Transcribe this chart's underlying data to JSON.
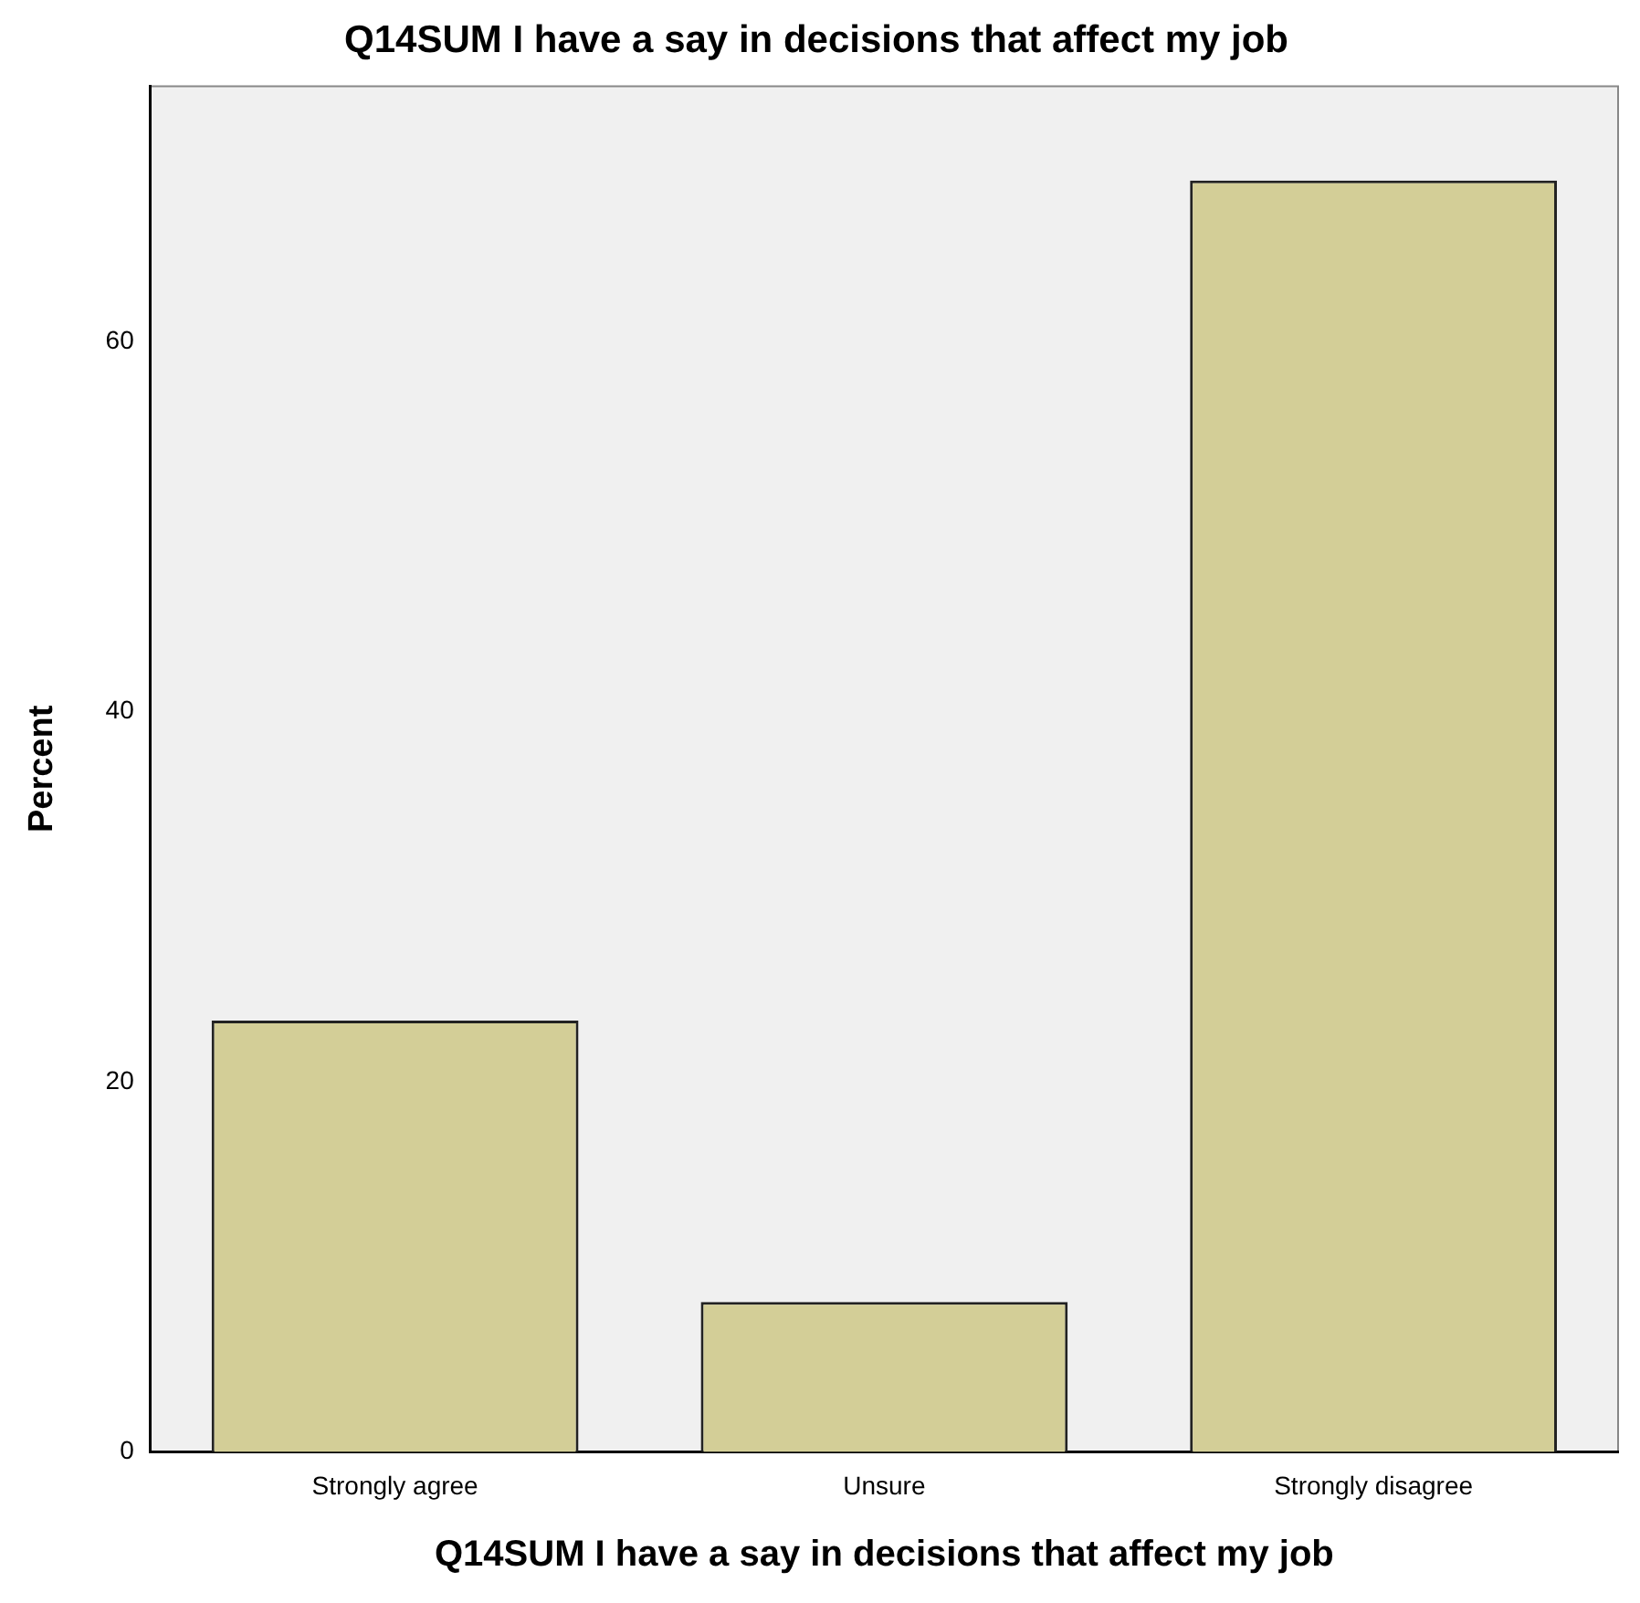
{
  "chart_data": {
    "type": "bar",
    "title": "Q14SUM I have a say in decisions that affect my job",
    "xlabel": "Q14SUM I have a say in decisions that affect my job",
    "ylabel": "Percent",
    "categories": [
      "Strongly agree",
      "Unsure",
      "Strongly disagree"
    ],
    "values": [
      23.3,
      8.1,
      68.7
    ],
    "color": "#d3ce97",
    "ylim": [
      0,
      73.8
    ],
    "yticks": [
      0,
      20,
      40,
      60
    ],
    "grid": false,
    "legend": false
  }
}
